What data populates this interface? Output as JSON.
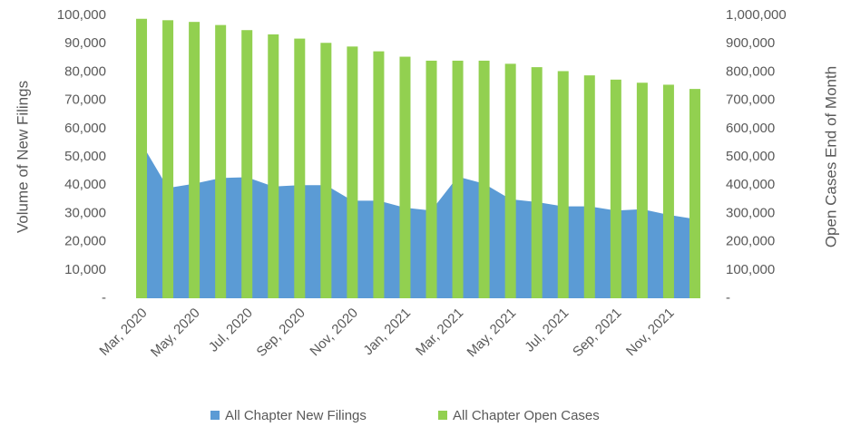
{
  "chart_data": {
    "type": "bar_area_combo",
    "y_label": "Volume of New Filings",
    "y2_label": "Open Cases End of Month",
    "categories": [
      "Mar, 2020",
      null,
      "May, 2020",
      null,
      "Jul, 2020",
      null,
      "Sep, 2020",
      null,
      "Nov, 2020",
      null,
      "Jan, 2021",
      null,
      "Mar, 2021",
      null,
      "May, 2021",
      null,
      "Jul, 2021",
      null,
      "Sep, 2021",
      null,
      "Nov, 2021",
      null
    ],
    "series": [
      {
        "name": "All Chapter New Filings",
        "type": "area",
        "color": "#5b9bd5",
        "axis": "y",
        "values": [
          58000,
          39000,
          40500,
          42500,
          42800,
          39500,
          40000,
          40000,
          34500,
          34500,
          32000,
          31000,
          43000,
          40500,
          35000,
          34000,
          32500,
          32500,
          31000,
          31500,
          29500,
          28000
        ]
      },
      {
        "name": "All Chapter Open Cases",
        "type": "bar",
        "color": "#92d050",
        "axis": "y2",
        "values": [
          988000,
          983000,
          977000,
          966000,
          948000,
          933000,
          918000,
          903000,
          890000,
          873000,
          854000,
          840000,
          840000,
          840000,
          829000,
          817000,
          803000,
          788000,
          773000,
          762000,
          755000,
          740000
        ]
      }
    ],
    "ylim": [
      0,
      100000
    ],
    "yticks": [
      {
        "value": 0,
        "label": "-"
      },
      {
        "value": 10000,
        "label": "10,000"
      },
      {
        "value": 20000,
        "label": "20,000"
      },
      {
        "value": 30000,
        "label": "30,000"
      },
      {
        "value": 40000,
        "label": "40,000"
      },
      {
        "value": 50000,
        "label": "50,000"
      },
      {
        "value": 60000,
        "label": "60,000"
      },
      {
        "value": 70000,
        "label": "70,000"
      },
      {
        "value": 80000,
        "label": "80,000"
      },
      {
        "value": 90000,
        "label": "90,000"
      },
      {
        "value": 100000,
        "label": "100,000"
      }
    ],
    "y2lim": [
      0,
      1000000
    ],
    "y2ticks": [
      {
        "value": 0,
        "label": "-"
      },
      {
        "value": 100000,
        "label": "100,000"
      },
      {
        "value": 200000,
        "label": "200,000"
      },
      {
        "value": 300000,
        "label": "300,000"
      },
      {
        "value": 400000,
        "label": "400,000"
      },
      {
        "value": 500000,
        "label": "500,000"
      },
      {
        "value": 600000,
        "label": "600,000"
      },
      {
        "value": 700000,
        "label": "700,000"
      },
      {
        "value": 800000,
        "label": "800,000"
      },
      {
        "value": 900000,
        "label": "900,000"
      },
      {
        "value": 1000000,
        "label": "1,000,000"
      }
    ],
    "grid": false,
    "legend": "bottom"
  }
}
